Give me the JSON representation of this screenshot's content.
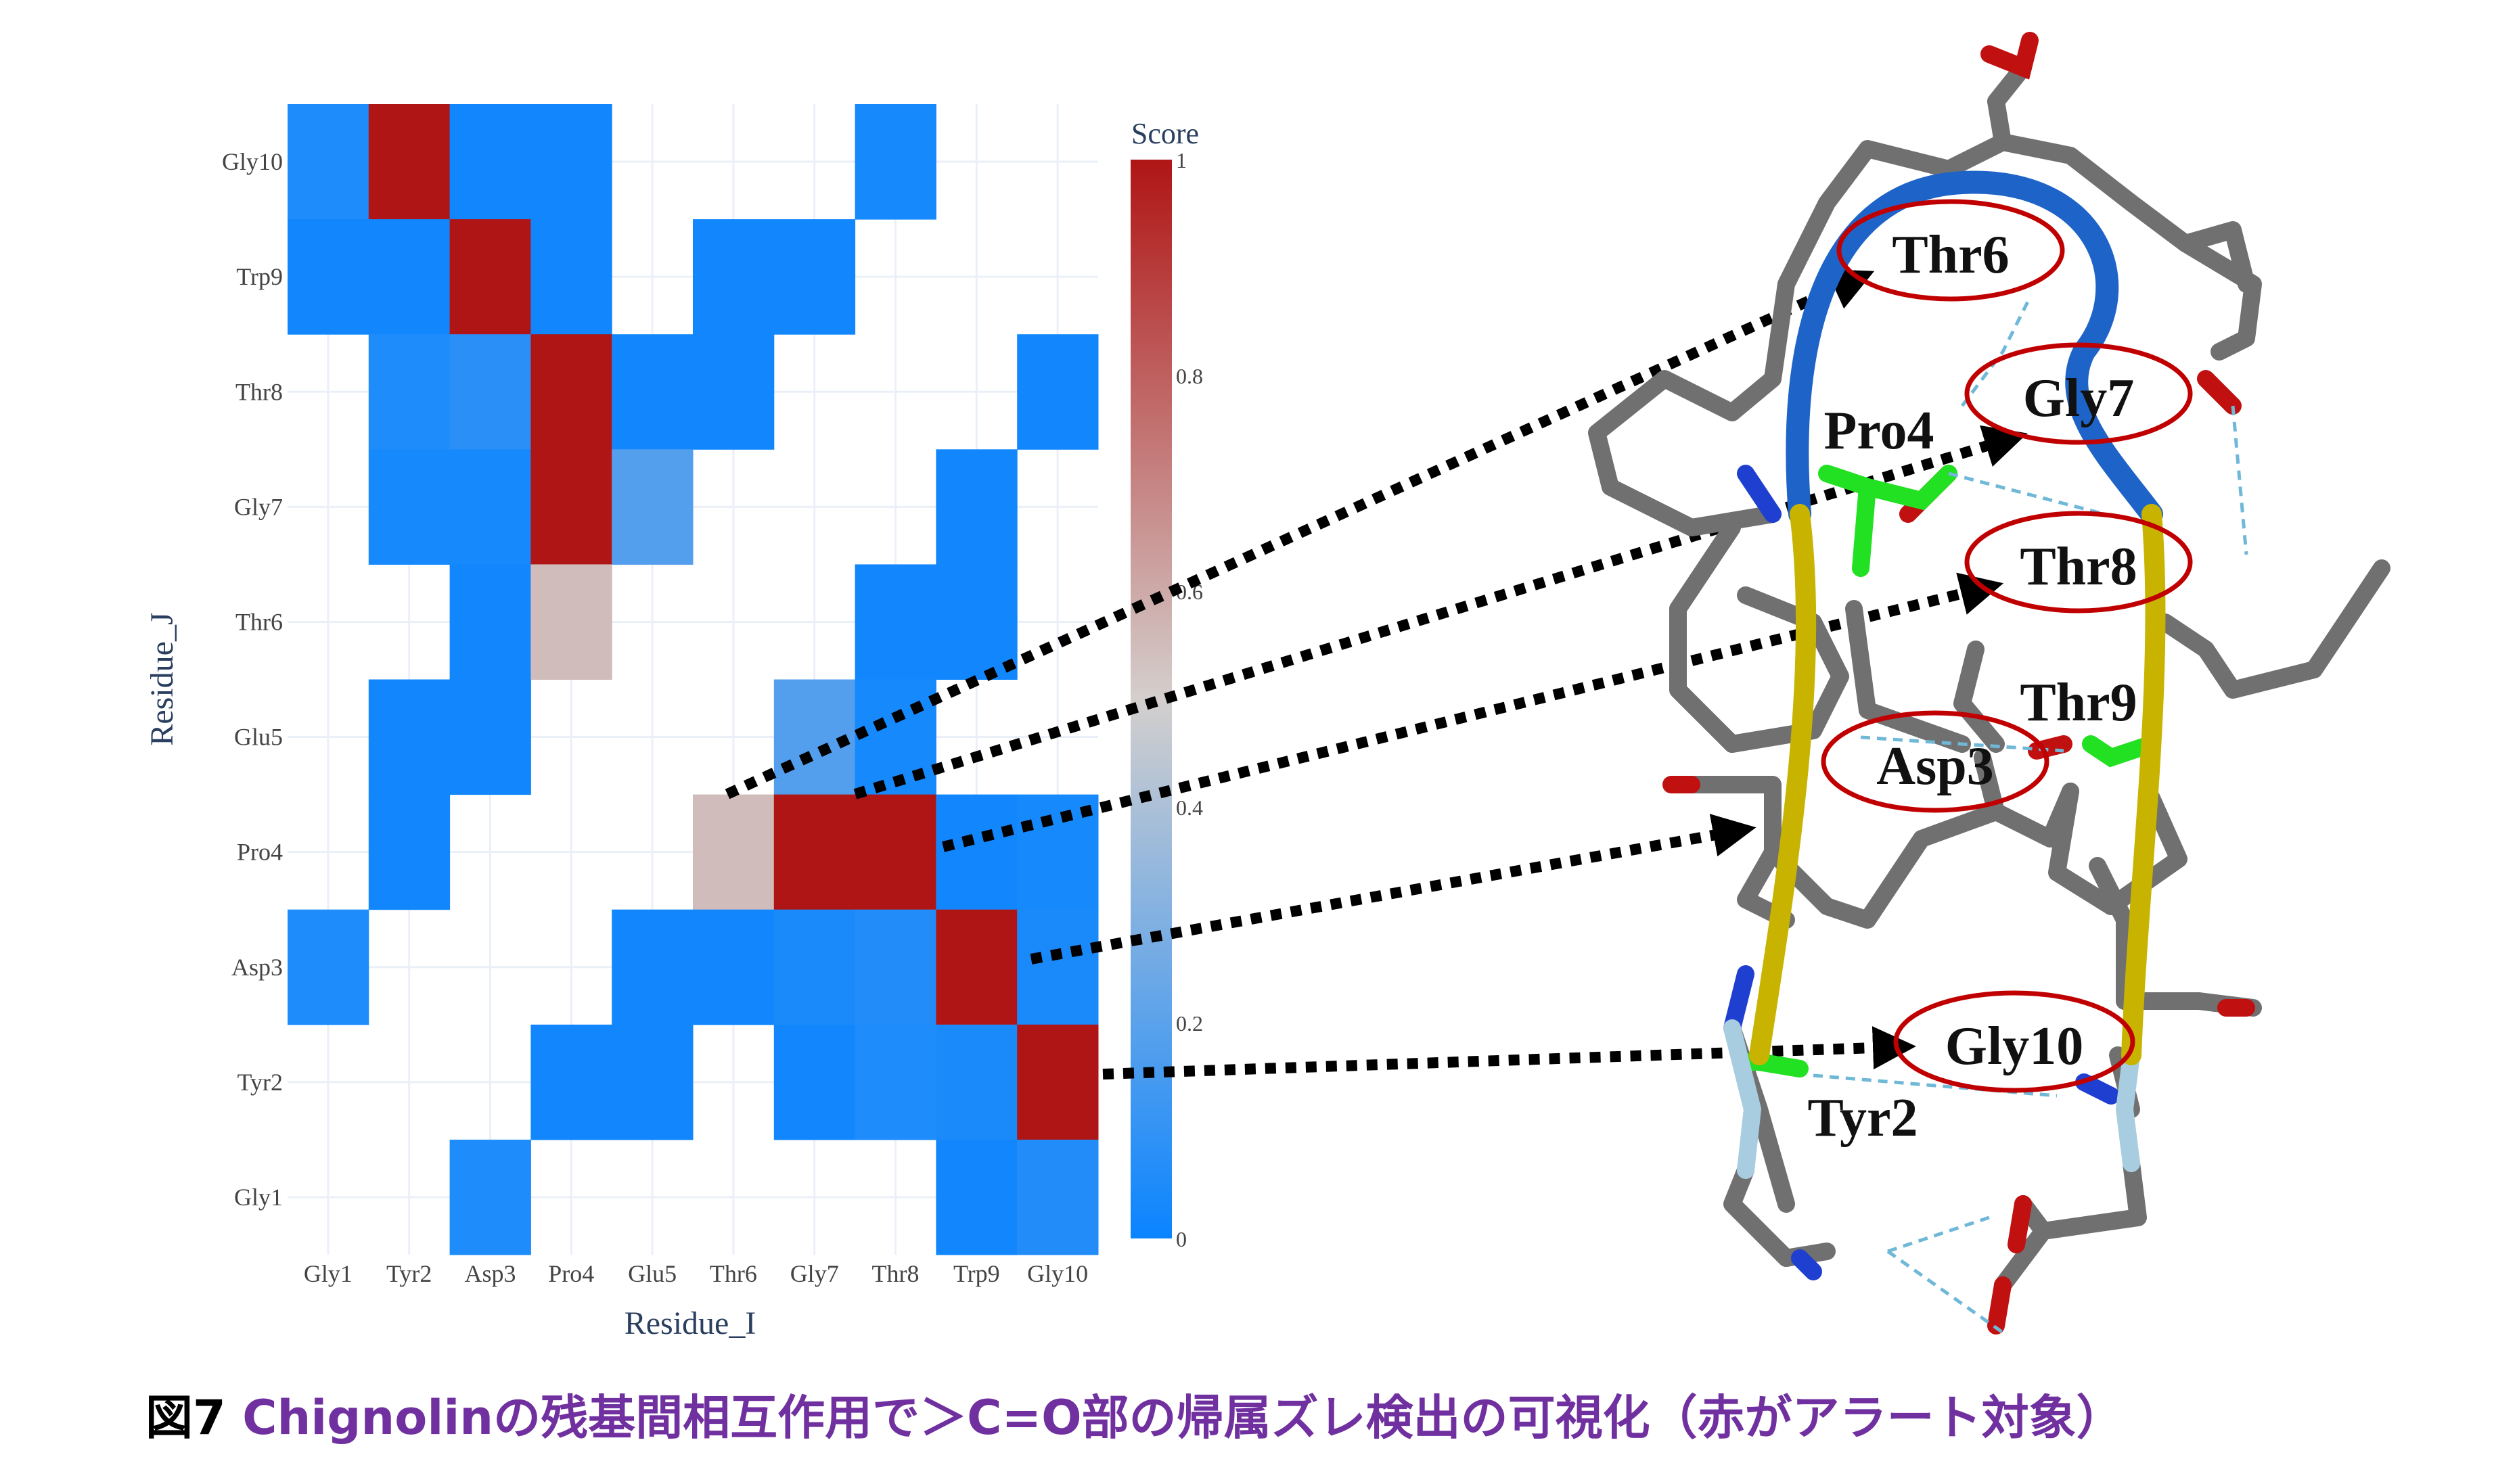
{
  "chart_data": {
    "type": "heatmap",
    "xlabel": "Residue_I",
    "ylabel": "Residue_J",
    "x_categories": [
      "Gly1",
      "Tyr2",
      "Asp3",
      "Pro4",
      "Glu5",
      "Thr6",
      "Gly7",
      "Thr8",
      "Trp9",
      "Gly10"
    ],
    "y_categories": [
      "Gly1",
      "Tyr2",
      "Asp3",
      "Pro4",
      "Glu5",
      "Thr6",
      "Gly7",
      "Thr8",
      "Trp9",
      "Gly10"
    ],
    "values_by_row": {
      "Gly10": [
        0.05,
        1,
        0.02,
        0.02,
        null,
        null,
        null,
        0.03,
        null,
        null
      ],
      "Trp9": [
        0.02,
        0.02,
        1,
        0.02,
        null,
        0.02,
        0.02,
        null,
        null,
        null
      ],
      "Thr8": [
        null,
        0.05,
        0.08,
        1,
        0.02,
        0.02,
        null,
        null,
        null,
        0.02
      ],
      "Gly7": [
        null,
        0.03,
        0.03,
        1,
        0.18,
        null,
        null,
        null,
        0.02,
        null
      ],
      "Thr6": [
        null,
        null,
        0.02,
        0.55,
        null,
        null,
        null,
        0.02,
        0.02,
        null
      ],
      "Glu5": [
        null,
        0.02,
        0.02,
        null,
        null,
        null,
        0.18,
        0.03,
        null,
        null
      ],
      "Pro4": [
        null,
        0.02,
        null,
        null,
        null,
        0.55,
        1,
        1,
        0.02,
        0.03
      ],
      "Asp3": [
        0.05,
        null,
        null,
        null,
        0.02,
        0.02,
        0.04,
        0.06,
        1,
        0.04
      ],
      "Tyr2": [
        null,
        null,
        null,
        0.02,
        0.02,
        null,
        0.02,
        0.05,
        0.04,
        1
      ],
      "Gly1": [
        null,
        null,
        0.05,
        null,
        null,
        null,
        null,
        null,
        0.02,
        0.06
      ]
    },
    "colorbar": {
      "title": "Score",
      "range": [
        0,
        1
      ],
      "ticks": [
        "0",
        "0.2",
        "0.4",
        "0.6",
        "0.8",
        "1"
      ]
    },
    "colorscale": {
      "low": "#0a84ff",
      "mid": "#d4cfcd",
      "high": "#b01515"
    },
    "grid": true
  },
  "molecule": {
    "labels": [
      "Thr6",
      "Gly7",
      "Pro4",
      "Thr8",
      "Thr9",
      "Asp3",
      "Gly10",
      "Tyr2"
    ],
    "circled_labels": [
      "Thr6",
      "Gly7",
      "Thr8",
      "Asp3",
      "Gly10"
    ]
  },
  "caption": {
    "figure_number": "図7",
    "text": " Chignolinの残基間相互作用で＞C=O部の帰属ズレ検出の可視化（赤がアラート対象）"
  },
  "colors": {
    "caption": "#7030a0",
    "ellipse": "#c00000",
    "strand": "#c8b400",
    "loop": "#1e64c8"
  }
}
